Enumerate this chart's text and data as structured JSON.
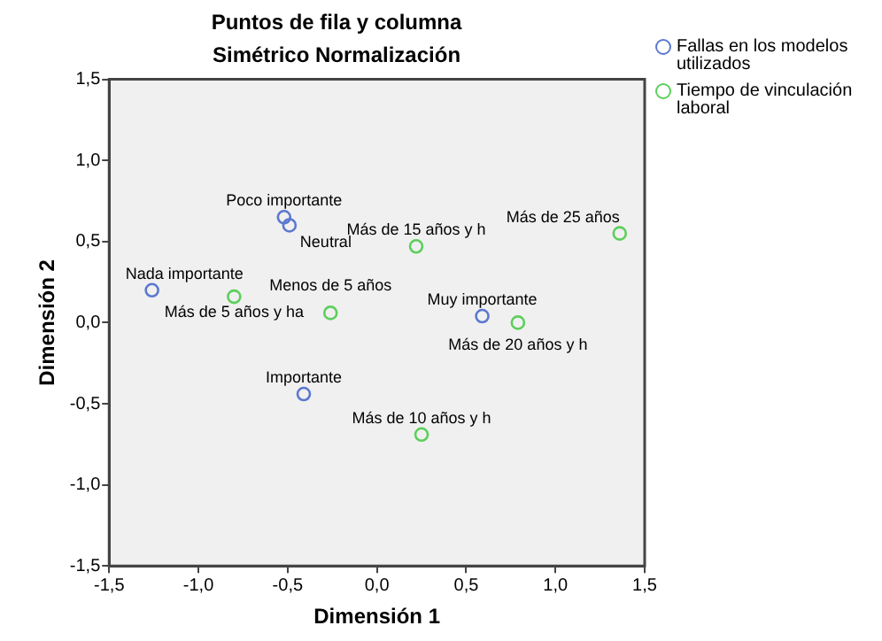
{
  "chart_data": {
    "type": "scatter",
    "title": "Puntos de fila y columna",
    "subtitle": "Simétrico Normalización",
    "xlabel": "Dimensión 1",
    "ylabel": "Dimensión 2",
    "series": [
      {
        "name": "Fallas en los modelos utilizados",
        "color": "#5b78d0",
        "x": [
          -0.52,
          -0.49,
          -1.26,
          0.59,
          -0.41
        ],
        "values": [
          0.65,
          0.6,
          0.2,
          0.04,
          -0.44
        ]
      },
      {
        "name": "Tiempo de vinculación laboral",
        "color": "#5ccf5c",
        "x": [
          -0.8,
          -0.26,
          0.22,
          1.36,
          0.79,
          0.25
        ],
        "values": [
          0.16,
          0.06,
          0.47,
          0.55,
          0.0,
          -0.69
        ]
      }
    ],
    "annotations": [
      {
        "text": "Poco importante",
        "x": -0.52,
        "y": 0.65
      },
      {
        "text": "Neutral",
        "x": -0.49,
        "y": 0.6
      },
      {
        "text": "Nada importante",
        "x": -1.26,
        "y": 0.2
      },
      {
        "text": "Muy importante",
        "x": 0.59,
        "y": 0.04
      },
      {
        "text": "Importante",
        "x": -0.41,
        "y": -0.44
      },
      {
        "text": "Más de 5 años y ha",
        "x": -0.8,
        "y": 0.16
      },
      {
        "text": "Menos de 5 años",
        "x": -0.26,
        "y": 0.06
      },
      {
        "text": "Más de 15 años y h",
        "x": 0.22,
        "y": 0.47
      },
      {
        "text": "Más de 25 años",
        "x": 1.36,
        "y": 0.55
      },
      {
        "text": "Más de 20 años y h",
        "x": 0.79,
        "y": 0.0
      },
      {
        "text": "Más de 10 años y h",
        "x": 0.25,
        "y": -0.69
      }
    ],
    "xlim": [
      -1.5,
      1.5
    ],
    "ylim": [
      -1.5,
      1.5
    ],
    "xticks": [
      {
        "value": -1.5,
        "label": "-1,5"
      },
      {
        "value": -1.0,
        "label": "-1,0"
      },
      {
        "value": -0.5,
        "label": "-0,5"
      },
      {
        "value": 0,
        "label": "0,0"
      },
      {
        "value": 0.5,
        "label": "0,5"
      },
      {
        "value": 1.0,
        "label": "1,0"
      },
      {
        "value": 1.5,
        "label": "1,5"
      }
    ],
    "yticks": [
      {
        "value": -1.5,
        "label": "-1,5"
      },
      {
        "value": -1.0,
        "label": "-1,0"
      },
      {
        "value": -0.5,
        "label": "-0,5"
      },
      {
        "value": 0,
        "label": "0,0"
      },
      {
        "value": 0.5,
        "label": "0,5"
      },
      {
        "value": 1.0,
        "label": "1,0"
      },
      {
        "value": 1.5,
        "label": "1,5"
      }
    ],
    "grid": false,
    "legend": "top right",
    "marker": "circle"
  }
}
